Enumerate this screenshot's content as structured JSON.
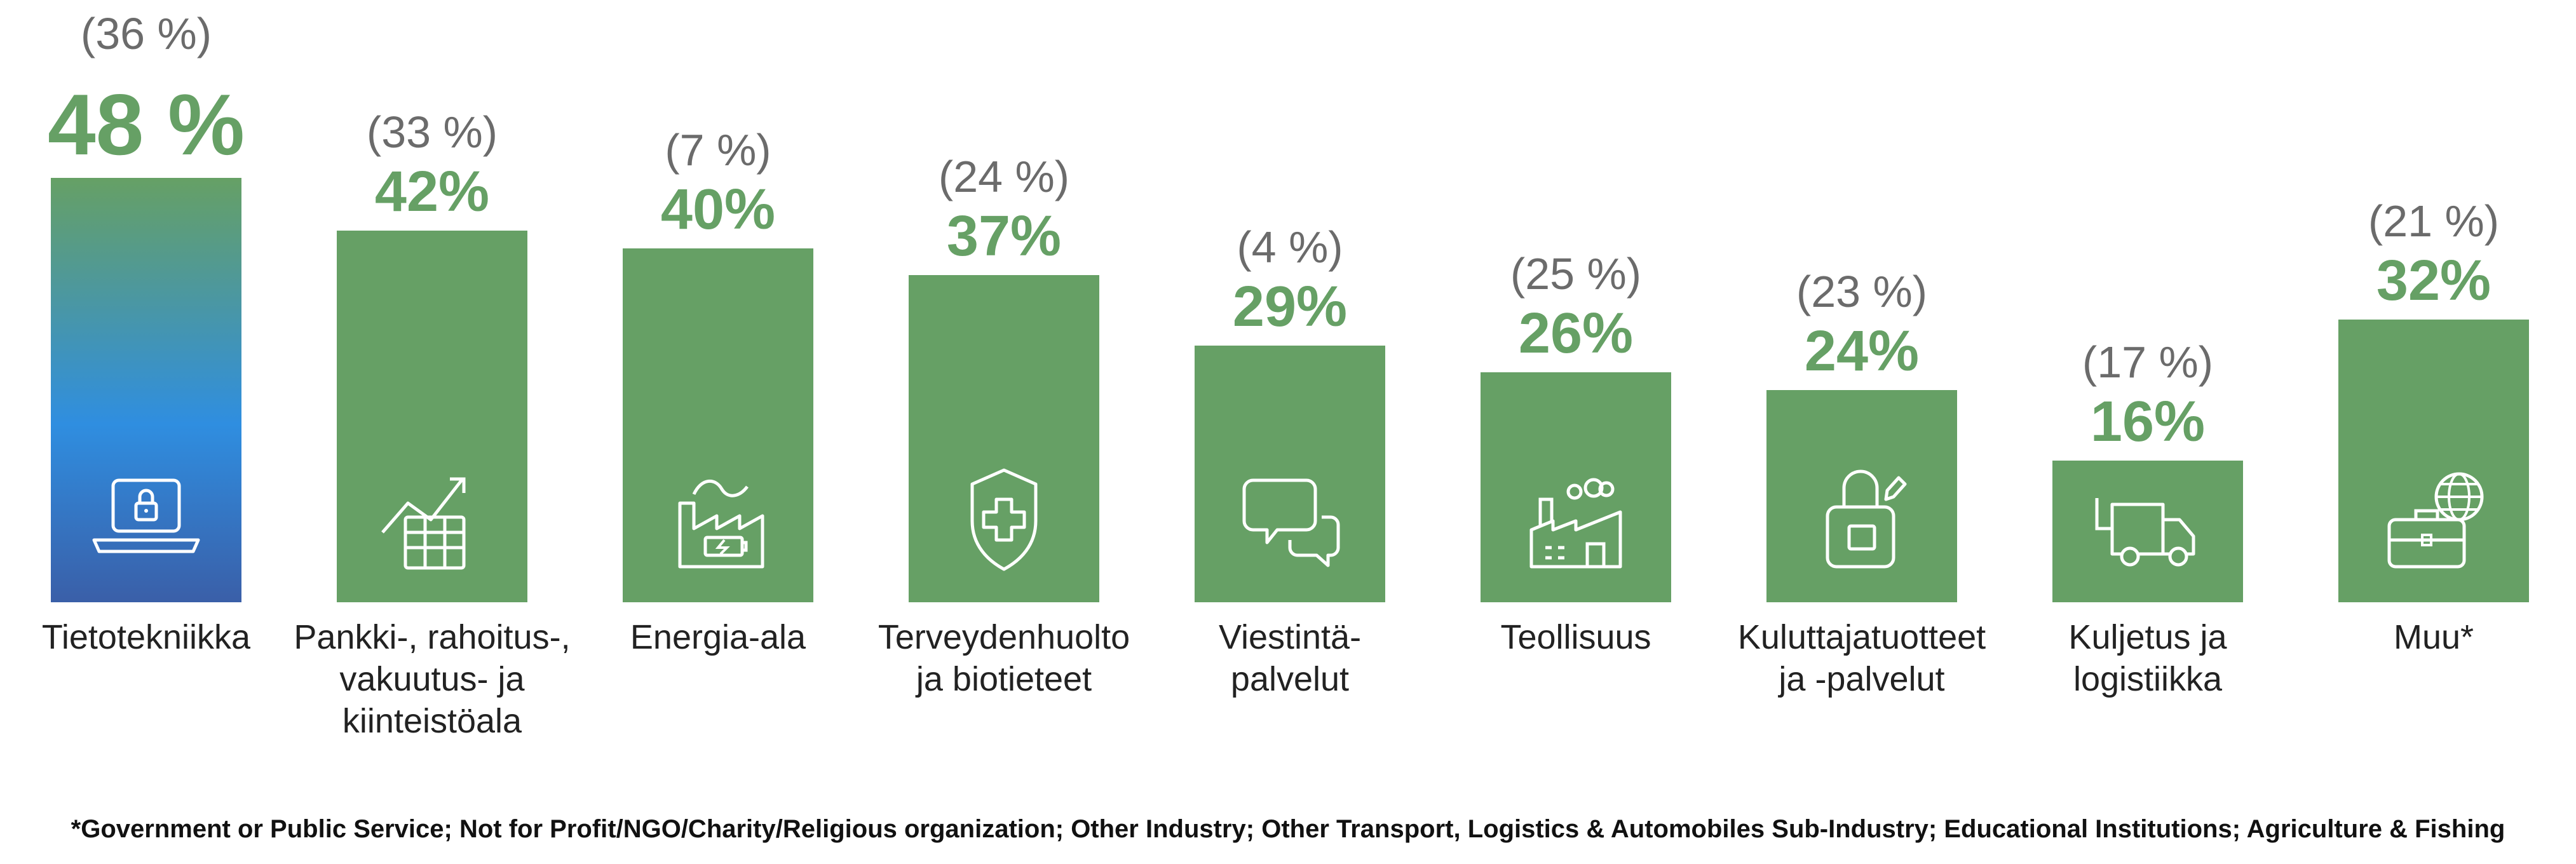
{
  "chart_data": {
    "type": "bar",
    "title": "",
    "xlabel": "",
    "ylabel": "",
    "ylim": [
      0,
      50
    ],
    "grid": false,
    "colors": {
      "bar": "#66a065",
      "value_text": "#66a065",
      "previous_text": "#6b6b6b",
      "highlight_gradient": [
        "#2f8ee0",
        "#3a5fa8",
        "#66a065"
      ]
    },
    "categories": [
      "Tietotekniikka",
      "Pankki-, rahoitus-, vakuutus- ja kiinteistöala",
      "Energia-ala",
      "Terveydenhuolto ja biotieteet",
      "Viestintä-palvelut",
      "Teollisuus",
      "Kuluttajatuotteet ja -palvelut",
      "Kuljetus ja logistiikka",
      "Muu*"
    ],
    "category_lines": [
      [
        "Tietotekniikka"
      ],
      [
        "Pankki-, rahoitus-,",
        "vakuutus- ja",
        "kiinteistöala"
      ],
      [
        "Energia-ala"
      ],
      [
        "Terveydenhuolto",
        "ja biotieteet"
      ],
      [
        "Viestintä-",
        "palvelut"
      ],
      [
        "Teollisuus"
      ],
      [
        "Kuluttajatuotteet",
        "ja -palvelut"
      ],
      [
        "Kuljetus ja",
        "logistiikka"
      ],
      [
        "Muu*"
      ]
    ],
    "series": [
      {
        "values": [
          48,
          42,
          40,
          37,
          29,
          26,
          24,
          16,
          32
        ]
      },
      {
        "values": [
          36,
          33,
          7,
          24,
          4,
          25,
          23,
          17,
          21
        ]
      }
    ],
    "value_labels": [
      "48 %",
      "42%",
      "40%",
      "37%",
      "29%",
      "26%",
      "24%",
      "16%",
      "32%"
    ],
    "previous_labels": [
      "(36 %)",
      "(33 %)",
      "(7 %)",
      "(24 %)",
      "(4 %)",
      "(25 %)",
      "(23 %)",
      "(17 %)",
      "(21 %)"
    ],
    "icons": [
      "laptop-lock-icon",
      "growth-chart-icon",
      "factory-battery-icon",
      "medical-shield-icon",
      "speech-bubbles-icon",
      "factory-icon",
      "shopping-bag-icon",
      "delivery-truck-icon",
      "briefcase-globe-icon"
    ],
    "highlighted_category": 0,
    "footnote": "*Government or Public Service; Not for Profit/NGO/Charity/Religious organization; Other Industry; Other Transport, Logistics & Automobiles Sub-Industry; Educational Institutions; Agriculture & Fishing"
  }
}
